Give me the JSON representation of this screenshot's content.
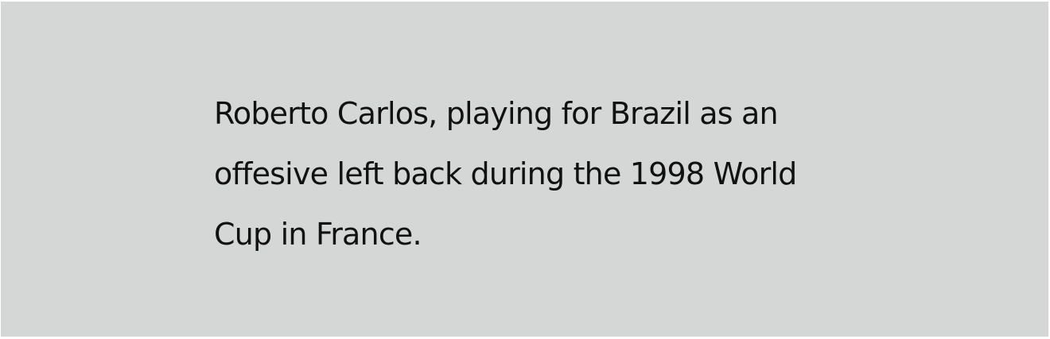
{
  "caption": {
    "lines": [
      "Roberto Carlos, playing for Brazil as an",
      "offesive left back during the 1998 World",
      "Cup in France."
    ]
  },
  "colors": {
    "background": "#d5d7d6",
    "text": "#111111"
  }
}
